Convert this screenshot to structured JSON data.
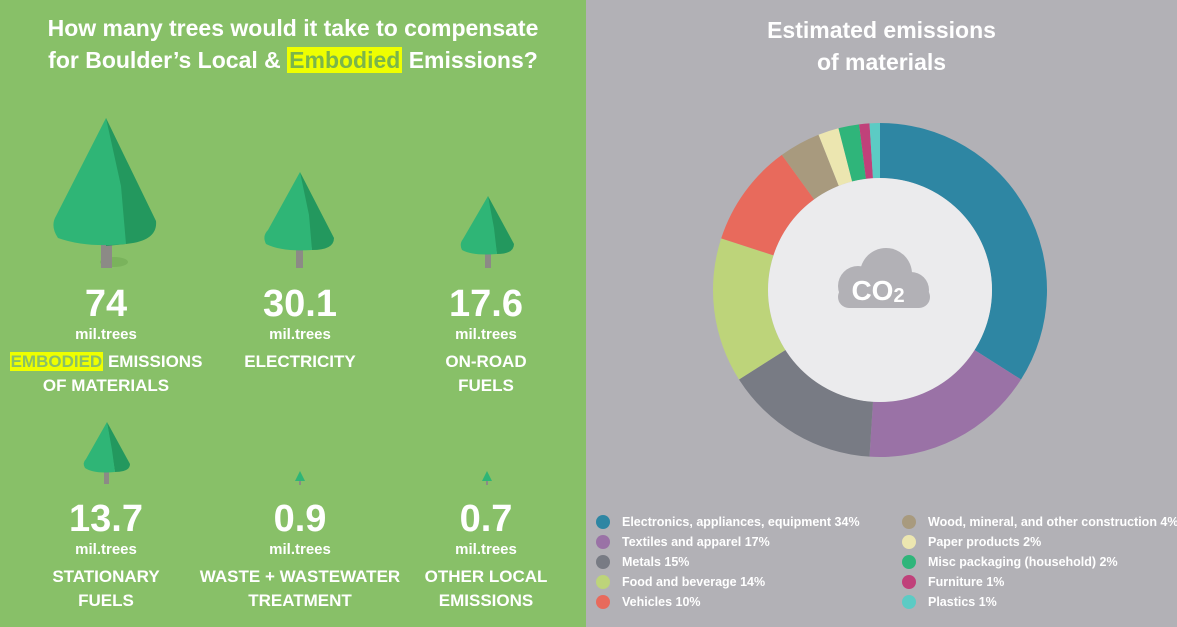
{
  "left": {
    "title_line1": "How many trees would it take to compensate",
    "title_line2_pre": "for Boulder’s Local & ",
    "title_line2_highlight": "Embodied",
    "title_line2_post": " Emissions?",
    "unit": "mil.trees",
    "items": [
      {
        "value": "74",
        "label_highlight": "EMBODIED",
        "label_line1": " EMISSIONS",
        "label_line2": "OF MATERIALS"
      },
      {
        "value": "30.1",
        "label_line1": "ELECTRICITY",
        "label_line2": ""
      },
      {
        "value": "17.6",
        "label_line1": "ON-ROAD",
        "label_line2": "FUELS"
      },
      {
        "value": "13.7",
        "label_line1": "STATIONARY",
        "label_line2": "FUELS"
      },
      {
        "value": "0.9",
        "label_line1": "WASTE + WASTEWATER",
        "label_line2": "TREATMENT"
      },
      {
        "value": "0.7",
        "label_line1": "OTHER LOCAL",
        "label_line2": "EMISSIONS"
      }
    ],
    "colors": {
      "background": "#88c068",
      "tree_light": "#2fb576",
      "tree_dark": "#23985e",
      "trunk": "#8c8a86",
      "highlight": "#eeff00"
    }
  },
  "chart_data": {
    "type": "pie",
    "variant": "donut",
    "title": "Estimated emissions of materials",
    "title_line1": "Estimated emissions",
    "title_line2": "of materials",
    "center_label": "CO",
    "center_sub": "2",
    "legend_position": "bottom",
    "slices": [
      {
        "label": "Electronics, appliances, equipment 34%",
        "value": 34,
        "color": "#2e86a3"
      },
      {
        "label": "Textiles and apparel 17%",
        "value": 17,
        "color": "#9a72a6"
      },
      {
        "label": "Metals 15%",
        "value": 15,
        "color": "#787b84"
      },
      {
        "label": "Food and beverage 14%",
        "value": 14,
        "color": "#bdd47a"
      },
      {
        "label": "Vehicles 10%",
        "value": 10,
        "color": "#e86a5c"
      },
      {
        "label": "Wood, mineral, and other construction 4%",
        "value": 4,
        "color": "#a89a7e"
      },
      {
        "label": "Paper products 2%",
        "value": 2,
        "color": "#ece6b0"
      },
      {
        "label": "Misc packaging (household) 2%",
        "value": 2,
        "color": "#2fb57a"
      },
      {
        "label": "Furniture 1%",
        "value": 1,
        "color": "#c0417a"
      },
      {
        "label": "Plastics 1%",
        "value": 1,
        "color": "#5ccbc4"
      }
    ]
  }
}
